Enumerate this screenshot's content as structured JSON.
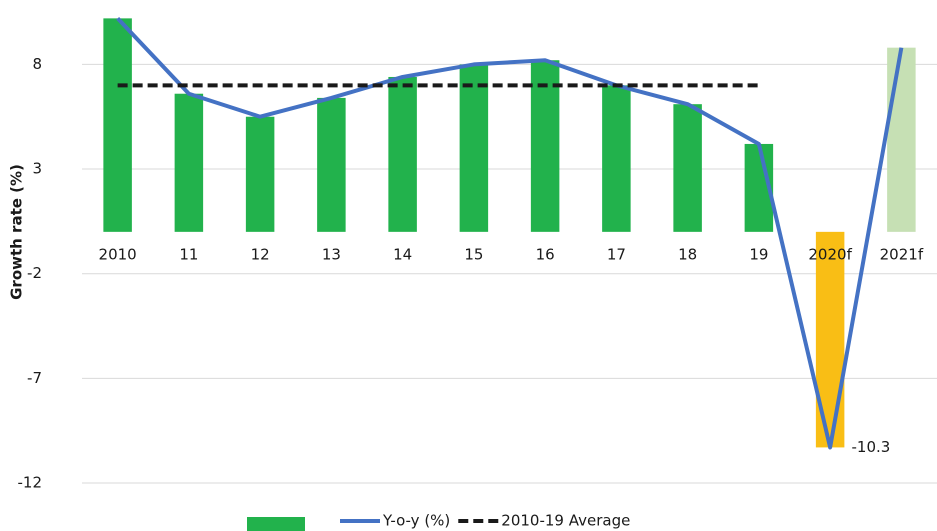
{
  "chart_data": {
    "type": "bar",
    "y_label": "Growth rate (%)",
    "categories": [
      "2010",
      "11",
      "12",
      "13",
      "14",
      "15",
      "16",
      "17",
      "18",
      "19",
      "2020f",
      "2021f"
    ],
    "series": [
      {
        "type": "bar",
        "colors": [
          "#22b24c",
          "#22b24c",
          "#22b24c",
          "#22b24c",
          "#22b24c",
          "#22b24c",
          "#22b24c",
          "#22b24c",
          "#22b24c",
          "#22b24c",
          "#f9be15",
          "#c6e0b4"
        ],
        "values": [
          10.2,
          6.6,
          5.5,
          6.4,
          7.4,
          8.0,
          8.2,
          7.0,
          6.1,
          4.2,
          -10.3,
          8.8
        ],
        "value_labels": [
          null,
          null,
          null,
          null,
          null,
          null,
          null,
          null,
          null,
          null,
          "-10.3",
          null
        ]
      },
      {
        "type": "line",
        "name": "Y-o-y (%)",
        "color": "#4472c4",
        "values": [
          10.2,
          6.6,
          5.5,
          6.4,
          7.4,
          8.0,
          8.2,
          7.0,
          6.1,
          4.2,
          -10.3,
          8.8
        ]
      },
      {
        "type": "line",
        "name": "2010-19 Average",
        "color": "#1a1a1a",
        "dashed": true,
        "values": [
          7.0,
          7.0,
          7.0,
          7.0,
          7.0,
          7.0,
          7.0,
          7.0,
          7.0,
          7.0,
          null,
          null
        ]
      }
    ],
    "ylim": [
      -12,
      10.6
    ],
    "yticks": [
      8,
      3,
      -2,
      -7,
      -12
    ],
    "grid": true
  }
}
